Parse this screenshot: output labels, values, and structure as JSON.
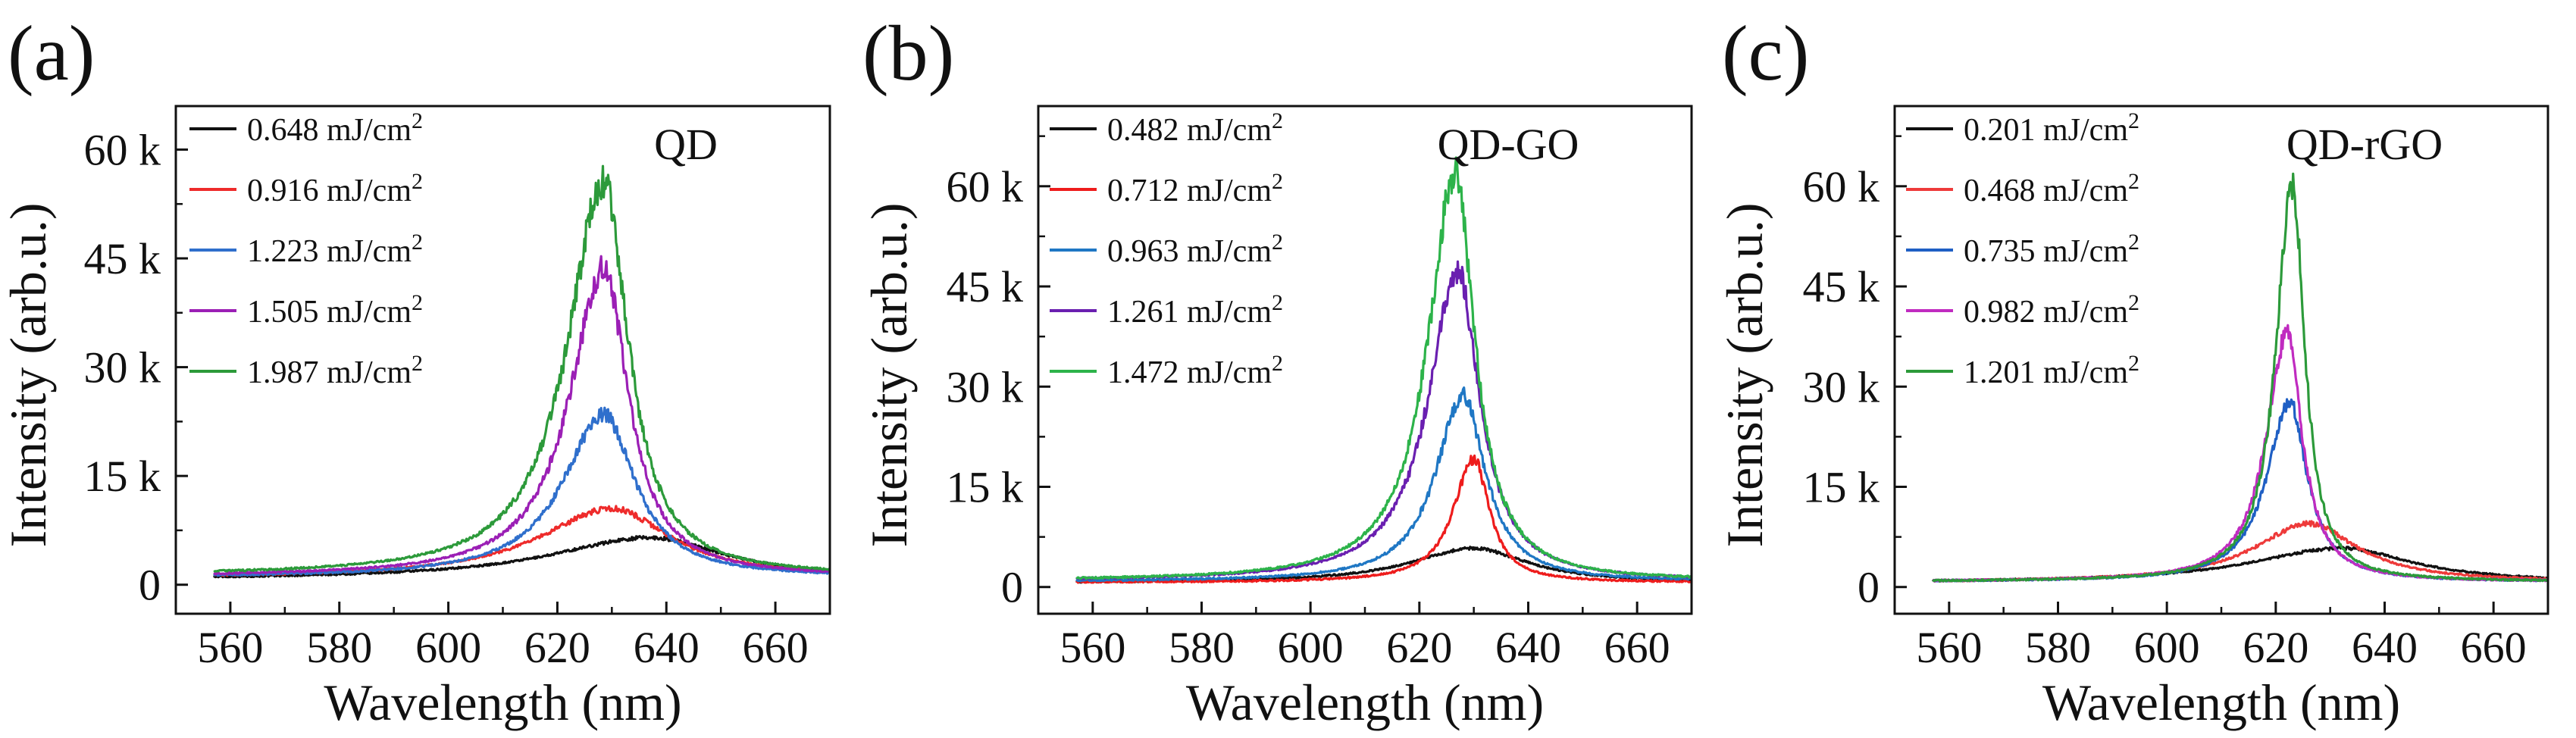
{
  "figure": {
    "description_free": true
  },
  "chart_data": [
    {
      "type": "line",
      "panel": "(a)",
      "sample": "QD",
      "xlabel": "Wavelength (nm)",
      "ylabel": "Intensity (arb.u.)",
      "xlim": [
        550,
        670
      ],
      "ylim": [
        -4000,
        66000
      ],
      "xticks": [
        560,
        580,
        600,
        620,
        640,
        660
      ],
      "yticks": [
        0,
        15000,
        30000,
        45000,
        60000
      ],
      "ytick_labels": [
        "0",
        "15 k",
        "30 k",
        "45 k",
        "60 k"
      ],
      "legend_unit": "mJ/cm",
      "legend_sup": "2",
      "series": [
        {
          "name": "0.648",
          "color": "#111111",
          "shape": {
            "peak": 637,
            "amp": 5800,
            "wL": 22,
            "wR": 17,
            "base": 700
          }
        },
        {
          "name": "0.916",
          "color": "#ee2b2b",
          "shape": {
            "peak": 630,
            "amp": 9600,
            "wL": 16,
            "wR": 13,
            "base": 900
          }
        },
        {
          "name": "1.223",
          "color": "#2f6fcc",
          "shape": {
            "peak": 628.5,
            "amp": 22500,
            "wL": 9,
            "wR": 7,
            "base": 1000
          }
        },
        {
          "name": "1.505",
          "color": "#9b1fb5",
          "shape": {
            "peak": 628.5,
            "amp": 42500,
            "wL": 7.5,
            "wR": 5.5,
            "base": 1100
          }
        },
        {
          "name": "1.987",
          "color": "#2c9a3a",
          "shape": {
            "peak": 628.5,
            "amp": 54500,
            "wL": 8,
            "wR": 5.5,
            "base": 1200
          }
        }
      ]
    },
    {
      "type": "line",
      "panel": "(b)",
      "sample": "QD-GO",
      "xlabel": "Wavelength (nm)",
      "ylabel": "Intensity (arb.u.)",
      "xlim": [
        550,
        670
      ],
      "ylim": [
        -4000,
        72000
      ],
      "xticks": [
        560,
        580,
        600,
        620,
        640,
        660
      ],
      "yticks": [
        0,
        15000,
        30000,
        45000,
        60000
      ],
      "ytick_labels": [
        "0",
        "15 k",
        "30 k",
        "45 k",
        "60 k"
      ],
      "legend_unit": "mJ/cm",
      "legend_sup": "2",
      "series": [
        {
          "name": "0.482",
          "color": "#111111",
          "shape": {
            "peak": 630,
            "amp": 5200,
            "wL": 14,
            "wR": 12,
            "base": 600
          }
        },
        {
          "name": "0.712",
          "color": "#ee1c1c",
          "shape": {
            "peak": 630,
            "amp": 18500,
            "wL": 4.5,
            "wR": 3.5,
            "base": 700
          }
        },
        {
          "name": "0.963",
          "color": "#1f77c4",
          "shape": {
            "peak": 628,
            "amp": 28000,
            "wL": 6,
            "wR": 5,
            "base": 800
          }
        },
        {
          "name": "1.261",
          "color": "#6a1fb0",
          "shape": {
            "peak": 627,
            "amp": 46500,
            "wL": 6.5,
            "wR": 5,
            "base": 900
          }
        },
        {
          "name": "1.472",
          "color": "#2db34a",
          "shape": {
            "peak": 626.5,
            "amp": 61000,
            "wL": 6,
            "wR": 4.5,
            "base": 900
          }
        }
      ]
    },
    {
      "type": "line",
      "panel": "(c)",
      "sample": "QD-rGO",
      "xlabel": "Wavelength (nm)",
      "ylabel": "Intensity (arb.u.)",
      "xlim": [
        550,
        670
      ],
      "ylim": [
        -4000,
        72000
      ],
      "xticks": [
        560,
        580,
        600,
        620,
        640,
        660
      ],
      "yticks": [
        0,
        15000,
        30000,
        45000,
        60000
      ],
      "ytick_labels": [
        "0",
        "15 k",
        "30 k",
        "45 k",
        "60 k"
      ],
      "legend_unit": "mJ/cm",
      "legend_sup": "2",
      "series": [
        {
          "name": "0.201",
          "color": "#111111",
          "shape": {
            "peak": 632,
            "amp": 5200,
            "wL": 20,
            "wR": 16,
            "base": 600
          }
        },
        {
          "name": "0.468",
          "color": "#ee3a3a",
          "shape": {
            "peak": 626,
            "amp": 8800,
            "wL": 12,
            "wR": 11,
            "base": 700
          }
        },
        {
          "name": "0.735",
          "color": "#1f5fc4",
          "shape": {
            "peak": 622.5,
            "amp": 27000,
            "wL": 5,
            "wR": 4,
            "base": 800
          }
        },
        {
          "name": "0.982",
          "color": "#c02bc0",
          "shape": {
            "peak": 622,
            "amp": 37000,
            "wL": 4.5,
            "wR": 3.5,
            "base": 800
          }
        },
        {
          "name": "1.201",
          "color": "#2c9a3a",
          "shape": {
            "peak": 623,
            "amp": 60000,
            "wL": 3.5,
            "wR": 2.8,
            "base": 800
          }
        }
      ]
    }
  ]
}
